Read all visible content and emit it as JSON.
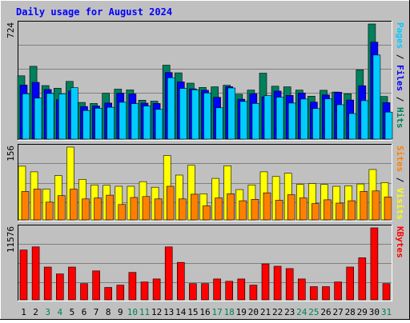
{
  "chart_data": {
    "type": "bar",
    "title": "Daily usage for August 2024",
    "categories": [
      "1",
      "2",
      "3",
      "4",
      "5",
      "6",
      "7",
      "8",
      "9",
      "10",
      "11",
      "12",
      "13",
      "14",
      "15",
      "16",
      "17",
      "18",
      "19",
      "20",
      "21",
      "22",
      "23",
      "24",
      "25",
      "26",
      "27",
      "28",
      "29",
      "30",
      "31"
    ],
    "weekend_days": [
      "3",
      "4",
      "10",
      "11",
      "17",
      "18",
      "24",
      "25",
      "31"
    ],
    "panels": [
      {
        "id": "traffic",
        "max_label": "724",
        "ylim": [
          0,
          724
        ],
        "legend": [
          {
            "text": "Pages",
            "color": "#00ccff"
          },
          {
            "text": " / ",
            "color": "#000000"
          },
          {
            "text": "Files",
            "color": "#0000ff"
          },
          {
            "text": " / ",
            "color": "#000000"
          },
          {
            "text": "Hits",
            "color": "#00805c"
          }
        ],
        "series": [
          {
            "name": "Hits",
            "color": "#00805c",
            "values": [
              398,
              458,
              337,
              320,
              363,
              231,
              224,
              288,
              314,
              309,
              245,
              239,
              465,
              417,
              352,
              325,
              329,
              339,
              282,
              308,
              415,
              333,
              329,
              308,
              270,
              307,
              296,
              285,
              436,
              724,
              268
            ]
          },
          {
            "name": "Files",
            "color": "#0000ff",
            "values": [
              340,
              357,
              312,
              248,
              303,
              205,
              208,
              227,
              289,
              284,
              226,
              224,
              419,
              360,
              316,
              307,
              263,
              330,
              251,
              286,
              266,
              302,
              275,
              290,
              233,
              278,
              295,
              246,
              336,
              610,
              230
            ]
          },
          {
            "name": "Pages",
            "color": "#00ccff",
            "values": [
              285,
              258,
              287,
              284,
              324,
              180,
              194,
              200,
              232,
              223,
              208,
              187,
              386,
              319,
              310,
              290,
              197,
              322,
              237,
              224,
              273,
              264,
              227,
              252,
              192,
              253,
              216,
              161,
              242,
              529,
              170
            ]
          }
        ]
      },
      {
        "id": "visits",
        "max_label": "156",
        "ylim": [
          0,
          156
        ],
        "legend": [
          {
            "text": "Sites",
            "color": "#ff8000"
          },
          {
            "text": " / ",
            "color": "#000000"
          },
          {
            "text": "Visits",
            "color": "#ffff00"
          }
        ],
        "series": [
          {
            "name": "Visits",
            "color": "#ffff00",
            "values": [
              115,
              103,
              66,
              95,
              156,
              87,
              75,
              74,
              72,
              72,
              82,
              70,
              138,
              96,
              117,
              56,
              89,
              116,
              65,
              75,
              103,
              93,
              100,
              76,
              78,
              76,
              72,
              73,
              77,
              108,
              80
            ]
          },
          {
            "name": "Sites",
            "color": "#ff8000",
            "values": [
              61,
              66,
              38,
              52,
              66,
              45,
              47,
              53,
              33,
              48,
              50,
              45,
              72,
              45,
              55,
              30,
              47,
              56,
              41,
              44,
              58,
              42,
              54,
              47,
              35,
              43,
              36,
              41,
              61,
              62,
              49
            ]
          }
        ]
      },
      {
        "id": "kbytes",
        "max_label": "11576",
        "ylim": [
          0,
          11576
        ],
        "legend": [
          {
            "text": "KBytes",
            "color": "#ff0000"
          }
        ],
        "series": [
          {
            "name": "KBytes",
            "color": "#ff0000",
            "values": [
              8014,
              8512,
              5276,
              4161,
              5276,
              2613,
              4658,
              1993,
              2365,
              4409,
              2862,
              3358,
              8512,
              6020,
              2613,
              2613,
              3358,
              2986,
              3358,
              2365,
              5772,
              5400,
              5027,
              3358,
              2117,
              2117,
              2862,
              5276,
              6764,
              11576,
              2613
            ]
          }
        ]
      }
    ]
  }
}
